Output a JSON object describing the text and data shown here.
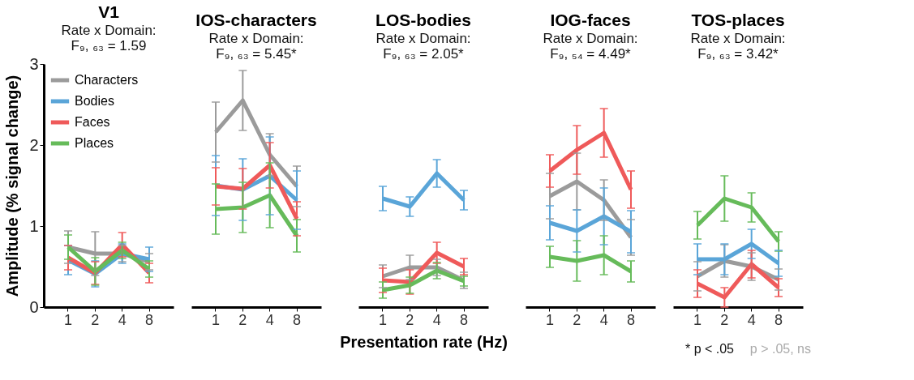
{
  "chart_data": [
    {
      "type": "line",
      "title": "V1",
      "subtitle": "Rate x Domain:\nF₉, ₆₃ = 1.59",
      "ylabel": "Amplitude (% signal change)",
      "categories": [
        "1",
        "2",
        "4",
        "8"
      ],
      "ylim": [
        0,
        3
      ],
      "yticks": [
        0,
        1,
        2,
        3
      ],
      "grid": false,
      "legend": "top left",
      "marker": "none",
      "line_style": "solid",
      "series": [
        {
          "name": "Characters",
          "color": "#9b9b9b",
          "values": [
            0.74,
            0.66,
            0.66,
            0.56
          ],
          "errors": [
            0.2,
            0.27,
            0.1,
            0.1
          ]
        },
        {
          "name": "Bodies",
          "color": "#5aa5d8",
          "values": [
            0.58,
            0.41,
            0.66,
            0.59
          ],
          "errors": [
            0.18,
            0.16,
            0.12,
            0.15
          ]
        },
        {
          "name": "Faces",
          "color": "#ef5a5a",
          "values": [
            0.61,
            0.42,
            0.77,
            0.42
          ],
          "errors": [
            0.15,
            0.14,
            0.15,
            0.12
          ]
        },
        {
          "name": "Places",
          "color": "#66bb5a",
          "values": [
            0.74,
            0.44,
            0.7,
            0.47
          ],
          "errors": [
            0.15,
            0.17,
            0.1,
            0.1
          ]
        }
      ]
    },
    {
      "type": "line",
      "title": "IOS-characters",
      "subtitle": "Rate x Domain:\nF₉, ₆₃ = 5.45*",
      "categories": [
        "1",
        "2",
        "4",
        "8"
      ],
      "ylim": [
        0,
        3
      ],
      "tick_labels": "x",
      "grid": false,
      "legend": false,
      "marker": "none",
      "line_style": "solid",
      "series": [
        {
          "name": "Characters",
          "color": "#9b9b9b",
          "values": [
            2.16,
            2.55,
            1.88,
            1.49
          ],
          "errors": [
            0.37,
            0.37,
            0.26,
            0.25
          ]
        },
        {
          "name": "Bodies",
          "color": "#5aa5d8",
          "values": [
            1.5,
            1.45,
            1.62,
            1.32
          ],
          "errors": [
            0.37,
            0.38,
            0.48,
            0.36
          ]
        },
        {
          "name": "Faces",
          "color": "#ef5a5a",
          "values": [
            1.49,
            1.46,
            1.75,
            1.09
          ],
          "errors": [
            0.23,
            0.25,
            0.28,
            0.21
          ]
        },
        {
          "name": "Places",
          "color": "#66bb5a",
          "values": [
            1.21,
            1.23,
            1.38,
            0.88
          ],
          "errors": [
            0.31,
            0.31,
            0.4,
            0.2
          ]
        }
      ]
    },
    {
      "type": "line",
      "title": "LOS-bodies",
      "subtitle": "Rate x Domain:\nF₉, ₆₃ = 2.05*",
      "xlabel": "Presentation rate (Hz)",
      "categories": [
        "1",
        "2",
        "4",
        "8"
      ],
      "ylim": [
        0,
        3
      ],
      "tick_labels": "x",
      "grid": false,
      "legend": false,
      "marker": "none",
      "line_style": "solid",
      "series": [
        {
          "name": "Characters",
          "color": "#9b9b9b",
          "values": [
            0.38,
            0.49,
            0.49,
            0.33
          ],
          "errors": [
            0.14,
            0.15,
            0.1,
            0.1
          ]
        },
        {
          "name": "Bodies",
          "color": "#5aa5d8",
          "values": [
            1.34,
            1.24,
            1.65,
            1.32
          ],
          "errors": [
            0.15,
            0.12,
            0.17,
            0.12
          ]
        },
        {
          "name": "Faces",
          "color": "#ef5a5a",
          "values": [
            0.33,
            0.31,
            0.67,
            0.5
          ],
          "errors": [
            0.15,
            0.15,
            0.13,
            0.1
          ]
        },
        {
          "name": "Places",
          "color": "#66bb5a",
          "values": [
            0.21,
            0.27,
            0.45,
            0.32
          ],
          "errors": [
            0.1,
            0.1,
            0.1,
            0.06
          ]
        }
      ]
    },
    {
      "type": "line",
      "title": "IOG-faces",
      "subtitle": "Rate x Domain:\nF₉, ₅₄ = 4.49*",
      "categories": [
        "1",
        "2",
        "4",
        "8"
      ],
      "ylim": [
        0,
        3
      ],
      "tick_labels": "x",
      "grid": false,
      "legend": false,
      "marker": "none",
      "line_style": "solid",
      "series": [
        {
          "name": "Characters",
          "color": "#9b9b9b",
          "values": [
            1.37,
            1.55,
            1.32,
            0.86
          ],
          "errors": [
            0.28,
            0.35,
            0.25,
            0.22
          ]
        },
        {
          "name": "Bodies",
          "color": "#5aa5d8",
          "values": [
            1.04,
            0.94,
            1.12,
            0.93
          ],
          "errors": [
            0.21,
            0.26,
            0.35,
            0.26
          ]
        },
        {
          "name": "Faces",
          "color": "#ef5a5a",
          "values": [
            1.68,
            1.94,
            2.15,
            1.45
          ],
          "errors": [
            0.2,
            0.3,
            0.3,
            0.23
          ]
        },
        {
          "name": "Places",
          "color": "#66bb5a",
          "values": [
            0.62,
            0.57,
            0.64,
            0.44
          ],
          "errors": [
            0.13,
            0.25,
            0.24,
            0.13
          ]
        }
      ]
    },
    {
      "type": "line",
      "title": "TOS-places",
      "subtitle": "Rate x Domain:\nF₉, ₆₃ = 3.42*",
      "categories": [
        "1",
        "2",
        "4",
        "8"
      ],
      "ylim": [
        0,
        3
      ],
      "tick_labels": "x",
      "grid": false,
      "legend": false,
      "marker": "none",
      "line_style": "solid",
      "annotations": [
        "* p < .05",
        "p > .05, ns"
      ],
      "series": [
        {
          "name": "Characters",
          "color": "#9b9b9b",
          "values": [
            0.38,
            0.57,
            0.5,
            0.34
          ],
          "errors": [
            0.18,
            0.2,
            0.17,
            0.13
          ]
        },
        {
          "name": "Bodies",
          "color": "#5aa5d8",
          "values": [
            0.59,
            0.59,
            0.78,
            0.54
          ],
          "errors": [
            0.19,
            0.19,
            0.18,
            0.16
          ]
        },
        {
          "name": "Faces",
          "color": "#ef5a5a",
          "values": [
            0.29,
            0.12,
            0.53,
            0.24
          ],
          "errors": [
            0.17,
            0.12,
            0.17,
            0.11
          ]
        },
        {
          "name": "Places",
          "color": "#66bb5a",
          "values": [
            1.01,
            1.34,
            1.23,
            0.81
          ],
          "errors": [
            0.17,
            0.28,
            0.18,
            0.12
          ]
        }
      ]
    }
  ]
}
